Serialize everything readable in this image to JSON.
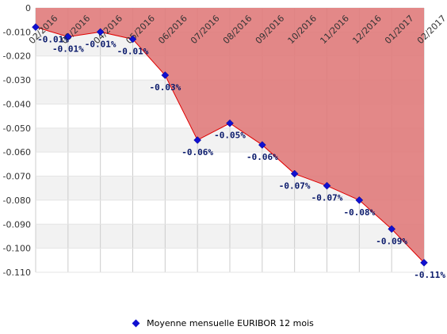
{
  "chart_data": {
    "type": "area",
    "x": [
      "02/2016",
      "03/2016",
      "04/2016",
      "05/2016",
      "06/2016",
      "07/2016",
      "08/2016",
      "09/2016",
      "10/2016",
      "11/2016",
      "12/2016",
      "01/2017",
      "02/2017"
    ],
    "series": [
      {
        "name": "Moyenne mensuelle EURIBOR 12 mois",
        "values": [
          -0.008,
          -0.012,
          -0.01,
          -0.013,
          -0.028,
          -0.055,
          -0.048,
          -0.057,
          -0.069,
          -0.074,
          -0.08,
          -0.092,
          -0.106
        ],
        "labels": [
          "-0.01%",
          "-0.01%",
          "-0.01%",
          "-0.01%",
          "-0.03%",
          "-0.06%",
          "-0.05%",
          "-0.06%",
          "-0.07%",
          "-0.07%",
          "-0.08%",
          "-0.09%",
          "-0.11%"
        ]
      }
    ],
    "yticks": [
      "0",
      "-0.010",
      "-0.020",
      "-0.030",
      "-0.040",
      "-0.050",
      "-0.060",
      "-0.070",
      "-0.080",
      "-0.090",
      "-0.100",
      "-0.110"
    ],
    "ylim": [
      -0.11,
      0
    ],
    "title": "",
    "xlabel": "",
    "ylabel": "",
    "grid": true,
    "legend_position": "bottom",
    "colors": {
      "fill": "#e07b7b",
      "line": "#e00000",
      "marker": "#1010d0",
      "label": "#0a1a6b",
      "band": "#f2f2f2",
      "grid": "#cccccc"
    }
  }
}
